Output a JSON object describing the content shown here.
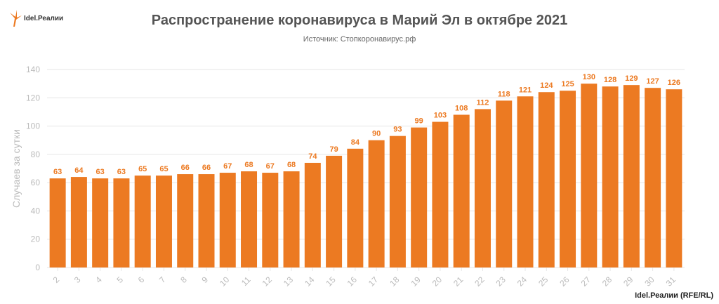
{
  "logo_text": "Idel.Реалии",
  "credit": "Idel.Реалии (RFE/RL)",
  "colors": {
    "bar": "#ec7a22",
    "label": "#ec7a22",
    "grid": "#e6e6e6",
    "axis_text": "#bbbbbb"
  },
  "chart_data": {
    "type": "bar",
    "title": "Распространение коронавируса в Марий Эл в октябре 2021",
    "subtitle": "Источник: Стопкоронавирус.рф",
    "xlabel": "",
    "ylabel": "Случаев за сутки",
    "ylim": [
      0,
      140
    ],
    "yticks": [
      0,
      20,
      40,
      60,
      80,
      100,
      120,
      140
    ],
    "grid": true,
    "categories": [
      "2",
      "3",
      "4",
      "5",
      "6",
      "7",
      "8",
      "9",
      "10",
      "11",
      "12",
      "13",
      "14",
      "15",
      "16",
      "17",
      "18",
      "19",
      "20",
      "21",
      "22",
      "23",
      "24",
      "25",
      "26",
      "27",
      "28",
      "29",
      "30",
      "31"
    ],
    "values": [
      63,
      64,
      63,
      63,
      65,
      65,
      66,
      66,
      67,
      68,
      67,
      68,
      74,
      79,
      84,
      90,
      93,
      99,
      103,
      108,
      112,
      118,
      121,
      124,
      125,
      130,
      128,
      129,
      127,
      126
    ]
  }
}
